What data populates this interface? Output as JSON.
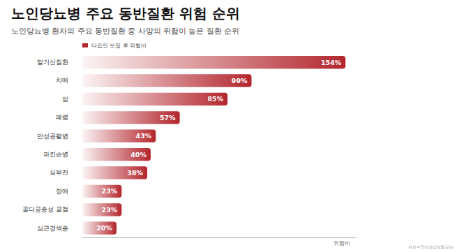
{
  "chart_data": {
    "type": "bar",
    "orientation": "horizontal",
    "title": "노인당뇨병 주요 동반질환 위험 순위",
    "subtitle": "노인당뇨병 환자의 주요 동반질환 중 사망의 위험이 높은 질환 순위",
    "x_label": "위험비",
    "source": "자료=국민건강보험공단",
    "categories": [
      "말기신질환",
      "치매",
      "암",
      "폐렴",
      "만성콩팥병",
      "파킨슨병",
      "심부전",
      "장애",
      "골다공증성 골절",
      "심근경색증"
    ],
    "series": [
      {
        "name": "다요인 보정 후 위험비",
        "color": "#b3262d",
        "values": [
          154,
          99,
          85,
          57,
          43,
          40,
          38,
          23,
          23,
          20
        ],
        "value_labels": [
          "154%",
          "99%",
          "85%",
          "57%",
          "43%",
          "40%",
          "38%",
          "23%",
          "23%",
          "20%"
        ]
      }
    ],
    "xlim": [
      0,
      160
    ],
    "xticks": [],
    "tick_labels": "y",
    "data_labels": true,
    "grid": false,
    "legend": "top-left"
  }
}
